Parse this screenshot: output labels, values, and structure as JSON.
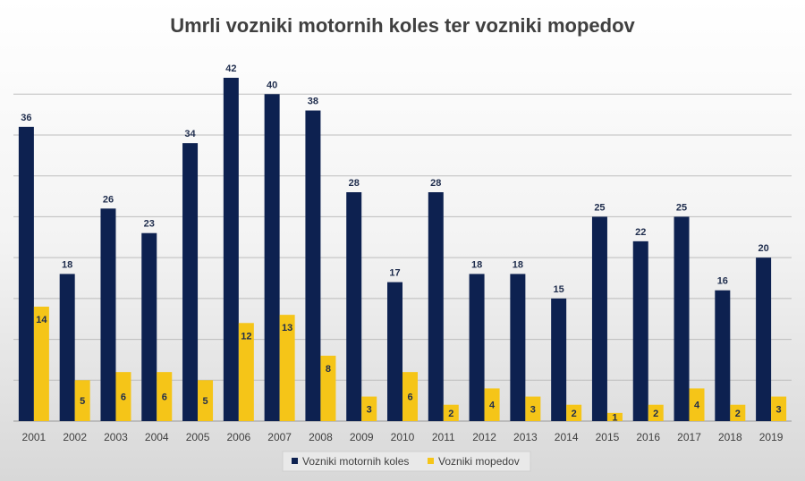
{
  "chart_data": {
    "type": "bar",
    "title": "Umrli vozniki motornih koles ter vozniki mopedov",
    "categories": [
      "2001",
      "2002",
      "2003",
      "2004",
      "2005",
      "2006",
      "2007",
      "2008",
      "2009",
      "2010",
      "2011",
      "2012",
      "2013",
      "2014",
      "2015",
      "2016",
      "2017",
      "2018",
      "2019"
    ],
    "series": [
      {
        "name": "Vozniki motornih koles",
        "color": "#0d2150",
        "label_color": "#1f2d4d",
        "values": [
          36,
          18,
          26,
          23,
          34,
          42,
          40,
          38,
          28,
          17,
          28,
          18,
          18,
          15,
          25,
          22,
          25,
          16,
          20
        ]
      },
      {
        "name": "Vozniki mopedov",
        "color": "#f5c518",
        "label_color": "#1f2d4d",
        "values": [
          14,
          5,
          6,
          6,
          5,
          12,
          13,
          8,
          3,
          6,
          2,
          4,
          3,
          2,
          1,
          2,
          4,
          2,
          3
        ]
      }
    ],
    "ylim": [
      0,
      42
    ],
    "grid": true,
    "legend": "bottom",
    "xlabel": "",
    "ylabel": ""
  }
}
